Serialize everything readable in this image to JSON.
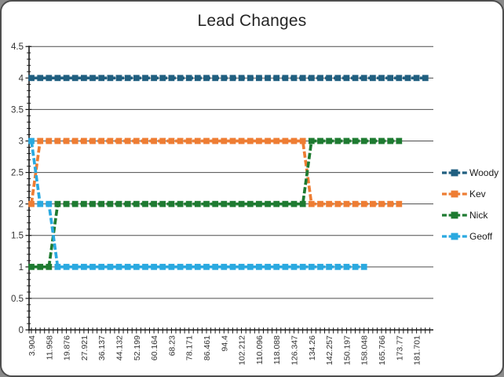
{
  "window": {
    "background": "#ffffff",
    "outer_background": "#8a8a8a",
    "border_color": "#4e4e4e"
  },
  "chart_data": {
    "type": "line",
    "title": "Lead Changes",
    "xlabel": "",
    "ylabel": "",
    "ylim": [
      0,
      4.5
    ],
    "ytick_step": 0.5,
    "grid": true,
    "legend_position": "right",
    "axis_color": "#1a1a1a",
    "gridline_color": "#4d4d4d",
    "tick_label_color": "#333333",
    "points_per_label": 2,
    "minor_x_ticks_per_label": 4,
    "y_tick_labels": [
      "0",
      "0.5",
      "1",
      "1.5",
      "2",
      "2.5",
      "3",
      "3.5",
      "4",
      "4.5"
    ],
    "x_tick_labels": [
      "3.904",
      "11.958",
      "19.876",
      "27.921",
      "36.137",
      "44.132",
      "52.199",
      "60.164",
      "68.23",
      "78.171",
      "86.461",
      "94.4",
      "102.212",
      "110.096",
      "118.088",
      "126.347",
      "134.26",
      "142.257",
      "150.197",
      "158.048",
      "165.766",
      "173.77",
      "181.701"
    ],
    "series": [
      {
        "name": "Woody",
        "color": "#205F80",
        "values": [
          4,
          4,
          4,
          4,
          4,
          4,
          4,
          4,
          4,
          4,
          4,
          4,
          4,
          4,
          4,
          4,
          4,
          4,
          4,
          4,
          4,
          4,
          4,
          4,
          4,
          4,
          4,
          4,
          4,
          4,
          4,
          4,
          4,
          4,
          4,
          4,
          4,
          4,
          4,
          4,
          4,
          4,
          4,
          4,
          4,
          4
        ]
      },
      {
        "name": "Kev",
        "color": "#EE7D33",
        "values": [
          2,
          3,
          3,
          3,
          3,
          3,
          3,
          3,
          3,
          3,
          3,
          3,
          3,
          3,
          3,
          3,
          3,
          3,
          3,
          3,
          3,
          3,
          3,
          3,
          3,
          3,
          3,
          3,
          3,
          3,
          3,
          3,
          2,
          2,
          2,
          2,
          2,
          2,
          2,
          2,
          2,
          2,
          2
        ]
      },
      {
        "name": "Nick",
        "color": "#1E7B31",
        "values": [
          1,
          1,
          1,
          2,
          2,
          2,
          2,
          2,
          2,
          2,
          2,
          2,
          2,
          2,
          2,
          2,
          2,
          2,
          2,
          2,
          2,
          2,
          2,
          2,
          2,
          2,
          2,
          2,
          2,
          2,
          2,
          2,
          3,
          3,
          3,
          3,
          3,
          3,
          3,
          3,
          3,
          3,
          3
        ]
      },
      {
        "name": "Geoff",
        "color": "#2AA9E0",
        "values": [
          3,
          2,
          2,
          1,
          1,
          1,
          1,
          1,
          1,
          1,
          1,
          1,
          1,
          1,
          1,
          1,
          1,
          1,
          1,
          1,
          1,
          1,
          1,
          1,
          1,
          1,
          1,
          1,
          1,
          1,
          1,
          1,
          1,
          1,
          1,
          1,
          1,
          1,
          1
        ]
      }
    ]
  }
}
